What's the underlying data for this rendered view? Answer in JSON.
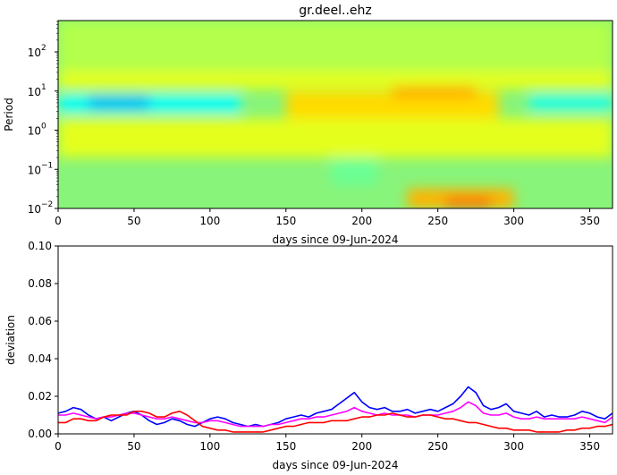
{
  "chart_data": [
    {
      "type": "heatmap",
      "title": "gr.deel..ehz",
      "xlabel": "days since 09-Jun-2024",
      "ylabel": "Period",
      "xlim": [
        0,
        365
      ],
      "ylim_log10": [
        -2,
        2.8
      ],
      "x_ticks": [
        0,
        50,
        100,
        150,
        200,
        250,
        300,
        350
      ],
      "x_tick_labels": [
        "0",
        "50",
        "100",
        "150",
        "200",
        "250",
        "300",
        "350"
      ],
      "y_ticks_log10": [
        -2,
        -1,
        0,
        1,
        2
      ],
      "y_tick_labels": [
        "10",
        "10",
        "10",
        "10",
        "10"
      ],
      "y_tick_exponents": [
        "−2",
        "−1",
        "0",
        "1",
        "2"
      ],
      "colormap": "jet",
      "background_color": "#88f47a",
      "features": [
        {
          "x": [
            0,
            365
          ],
          "period_log10": [
            1.5,
            2.8
          ],
          "level": 0.55
        },
        {
          "x": [
            0,
            365
          ],
          "period_log10": [
            1.05,
            1.5
          ],
          "level": 0.6
        },
        {
          "x": [
            0,
            120
          ],
          "period_log10": [
            0.45,
            0.9
          ],
          "level": 0.38
        },
        {
          "x": [
            20,
            60
          ],
          "period_log10": [
            0.55,
            0.85
          ],
          "level": 0.3
        },
        {
          "x": [
            150,
            290
          ],
          "period_log10": [
            0.2,
            1.0
          ],
          "level": 0.66
        },
        {
          "x": [
            220,
            275
          ],
          "period_log10": [
            0.85,
            1.1
          ],
          "level": 0.72
        },
        {
          "x": [
            310,
            365
          ],
          "period_log10": [
            0.5,
            0.9
          ],
          "level": 0.4
        },
        {
          "x": [
            180,
            210
          ],
          "period_log10": [
            -1.4,
            -0.6
          ],
          "level": 0.48
        },
        {
          "x": [
            0,
            365
          ],
          "period_log10": [
            -0.7,
            0.3
          ],
          "level": 0.6
        },
        {
          "x": [
            230,
            300
          ],
          "period_log10": [
            -2,
            -1.5
          ],
          "level": 0.7
        },
        {
          "x": [
            255,
            285
          ],
          "period_log10": [
            -2,
            -1.7
          ],
          "level": 0.76
        }
      ]
    },
    {
      "type": "line",
      "xlabel": "days since 09-Jun-2024",
      "ylabel": "deviation",
      "xlim": [
        0,
        365
      ],
      "ylim": [
        0,
        0.1
      ],
      "x_ticks": [
        0,
        50,
        100,
        150,
        200,
        250,
        300,
        350
      ],
      "x_tick_labels": [
        "0",
        "50",
        "100",
        "150",
        "200",
        "250",
        "300",
        "350"
      ],
      "y_ticks": [
        0,
        0.02,
        0.04,
        0.06,
        0.08,
        0.1
      ],
      "y_tick_labels": [
        "0.00",
        "0.02",
        "0.04",
        "0.06",
        "0.08",
        "0.10"
      ],
      "series": [
        {
          "name": "blue",
          "color": "#0000ff",
          "x": [
            0,
            5,
            10,
            15,
            20,
            25,
            30,
            35,
            40,
            45,
            50,
            55,
            60,
            65,
            70,
            75,
            80,
            85,
            90,
            95,
            100,
            105,
            110,
            115,
            120,
            125,
            130,
            135,
            140,
            145,
            150,
            155,
            160,
            165,
            170,
            175,
            180,
            185,
            190,
            195,
            200,
            205,
            210,
            215,
            220,
            225,
            230,
            235,
            240,
            245,
            250,
            255,
            260,
            265,
            270,
            275,
            280,
            285,
            290,
            295,
            300,
            305,
            310,
            315,
            320,
            325,
            330,
            335,
            340,
            345,
            350,
            355,
            360,
            365
          ],
          "values": [
            0.011,
            0.012,
            0.014,
            0.013,
            0.01,
            0.008,
            0.009,
            0.007,
            0.009,
            0.011,
            0.012,
            0.01,
            0.007,
            0.005,
            0.006,
            0.008,
            0.007,
            0.005,
            0.004,
            0.006,
            0.008,
            0.009,
            0.008,
            0.006,
            0.005,
            0.004,
            0.005,
            0.004,
            0.005,
            0.006,
            0.008,
            0.009,
            0.01,
            0.009,
            0.011,
            0.012,
            0.013,
            0.016,
            0.019,
            0.022,
            0.017,
            0.014,
            0.013,
            0.014,
            0.012,
            0.012,
            0.013,
            0.011,
            0.012,
            0.013,
            0.012,
            0.014,
            0.016,
            0.02,
            0.025,
            0.022,
            0.015,
            0.013,
            0.014,
            0.016,
            0.012,
            0.011,
            0.01,
            0.012,
            0.009,
            0.01,
            0.009,
            0.009,
            0.01,
            0.012,
            0.011,
            0.009,
            0.008,
            0.011
          ]
        },
        {
          "name": "magenta",
          "color": "#ff00ff",
          "x": [
            0,
            5,
            10,
            15,
            20,
            25,
            30,
            35,
            40,
            45,
            50,
            55,
            60,
            65,
            70,
            75,
            80,
            85,
            90,
            95,
            100,
            105,
            110,
            115,
            120,
            125,
            130,
            135,
            140,
            145,
            150,
            155,
            160,
            165,
            170,
            175,
            180,
            185,
            190,
            195,
            200,
            205,
            210,
            215,
            220,
            225,
            230,
            235,
            240,
            245,
            250,
            255,
            260,
            265,
            270,
            275,
            280,
            285,
            290,
            295,
            300,
            305,
            310,
            315,
            320,
            325,
            330,
            335,
            340,
            345,
            350,
            355,
            360,
            365
          ],
          "values": [
            0.01,
            0.01,
            0.011,
            0.01,
            0.009,
            0.008,
            0.009,
            0.009,
            0.01,
            0.011,
            0.011,
            0.01,
            0.009,
            0.008,
            0.008,
            0.009,
            0.008,
            0.007,
            0.006,
            0.006,
            0.007,
            0.007,
            0.006,
            0.005,
            0.004,
            0.004,
            0.004,
            0.004,
            0.005,
            0.005,
            0.006,
            0.007,
            0.008,
            0.008,
            0.009,
            0.009,
            0.01,
            0.011,
            0.012,
            0.014,
            0.012,
            0.011,
            0.01,
            0.011,
            0.01,
            0.01,
            0.01,
            0.009,
            0.01,
            0.01,
            0.01,
            0.011,
            0.012,
            0.014,
            0.017,
            0.015,
            0.011,
            0.01,
            0.01,
            0.011,
            0.009,
            0.008,
            0.008,
            0.009,
            0.008,
            0.008,
            0.008,
            0.008,
            0.008,
            0.009,
            0.008,
            0.007,
            0.006,
            0.009
          ]
        },
        {
          "name": "red",
          "color": "#ff0000",
          "x": [
            0,
            5,
            10,
            15,
            20,
            25,
            30,
            35,
            40,
            45,
            50,
            55,
            60,
            65,
            70,
            75,
            80,
            85,
            90,
            95,
            100,
            105,
            110,
            115,
            120,
            125,
            130,
            135,
            140,
            145,
            150,
            155,
            160,
            165,
            170,
            175,
            180,
            185,
            190,
            195,
            200,
            205,
            210,
            215,
            220,
            225,
            230,
            235,
            240,
            245,
            250,
            255,
            260,
            265,
            270,
            275,
            280,
            285,
            290,
            295,
            300,
            305,
            310,
            315,
            320,
            325,
            330,
            335,
            340,
            345,
            350,
            355,
            360,
            365
          ],
          "values": [
            0.006,
            0.006,
            0.008,
            0.008,
            0.007,
            0.007,
            0.009,
            0.01,
            0.01,
            0.01,
            0.012,
            0.012,
            0.011,
            0.009,
            0.009,
            0.011,
            0.012,
            0.01,
            0.007,
            0.004,
            0.003,
            0.002,
            0.002,
            0.001,
            0.001,
            0.001,
            0.001,
            0.001,
            0.002,
            0.003,
            0.004,
            0.004,
            0.005,
            0.006,
            0.006,
            0.006,
            0.007,
            0.007,
            0.007,
            0.008,
            0.009,
            0.009,
            0.01,
            0.01,
            0.011,
            0.01,
            0.009,
            0.009,
            0.01,
            0.01,
            0.009,
            0.008,
            0.008,
            0.007,
            0.006,
            0.006,
            0.005,
            0.004,
            0.003,
            0.003,
            0.002,
            0.002,
            0.002,
            0.001,
            0.001,
            0.001,
            0.001,
            0.002,
            0.002,
            0.003,
            0.003,
            0.004,
            0.004,
            0.005
          ]
        }
      ]
    }
  ]
}
